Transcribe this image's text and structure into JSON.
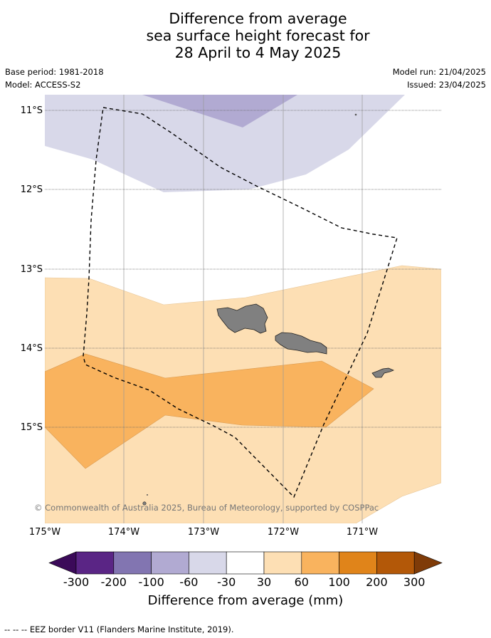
{
  "title": {
    "line1": "Difference from average",
    "line2": "sea surface height forecast for",
    "line3": "28 April to 4 May 2025"
  },
  "meta": {
    "base_period": "Base period: 1981-2018",
    "model": "Model: ACCESS-S2",
    "model_run": "Model run: 21/04/2025",
    "issued": "Issued: 23/04/2025"
  },
  "map": {
    "lat_labels": [
      "11°S",
      "12°S",
      "13°S",
      "14°S",
      "15°S"
    ],
    "lon_labels": [
      "175°W",
      "174°W",
      "173°W",
      "172°W",
      "171°W"
    ],
    "copyright": "© Commonwealth of Australia 2025, Bureau of Meteorology, supported by COSPPac",
    "colors": {
      "band_neg30_neg60": "#d8d8e9",
      "band_neg60_neg100": "#b1aad2",
      "band_30_60": "#fddfb4",
      "band_60_100": "#f9b35e",
      "land": "#808080",
      "eez": "#000000"
    }
  },
  "colorbar": {
    "ticks": [
      "-300",
      "-200",
      "-100",
      "-60",
      "-30",
      "30",
      "60",
      "100",
      "200",
      "300"
    ],
    "colors": [
      "#3b0a59",
      "#5a2585",
      "#8275b1",
      "#b1aad2",
      "#d8d8e9",
      "#ffffff",
      "#fddfb4",
      "#f9b35e",
      "#e0841a",
      "#b35808",
      "#7f3b08"
    ],
    "label": "Difference from average (mm)"
  },
  "footnote": "--  --  -- EEZ border V11 (Flanders Marine Institute, 2019)."
}
